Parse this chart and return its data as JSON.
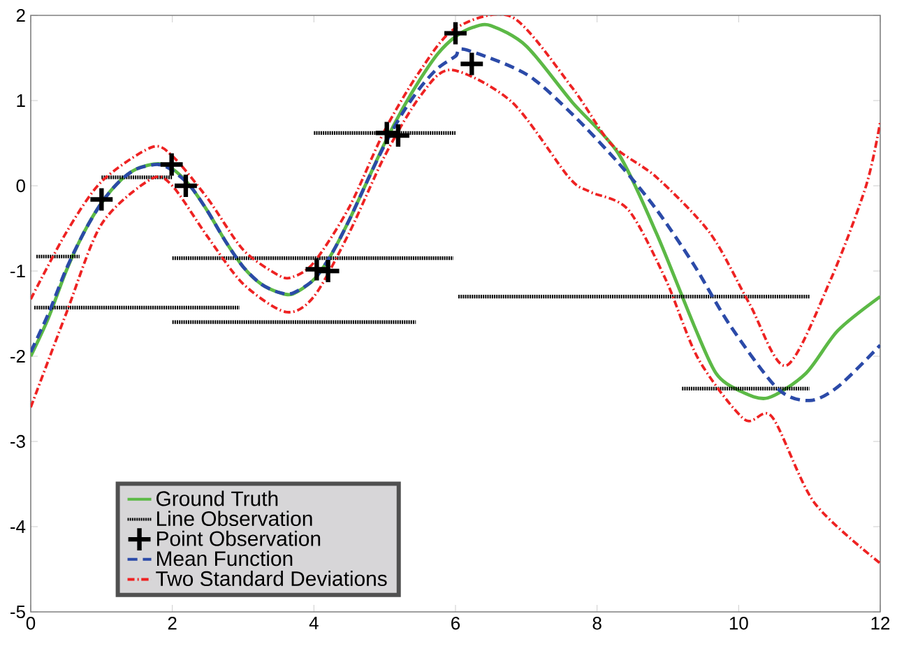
{
  "chart_data": {
    "type": "line",
    "xlim": [
      0,
      12
    ],
    "ylim": [
      -5,
      2
    ],
    "xticks": [
      0,
      2,
      4,
      6,
      8,
      10,
      12
    ],
    "yticks": [
      -5,
      -4,
      -3,
      -2,
      -1,
      0,
      1,
      2
    ],
    "grid": false,
    "legend": "bottom left",
    "series": [
      {
        "name": "Ground Truth",
        "color": "#5cb946",
        "line_style": "solid",
        "x": [
          0,
          0.25,
          0.5,
          0.75,
          1,
          1.25,
          1.5,
          1.8,
          2,
          2.25,
          2.5,
          2.75,
          3,
          3.25,
          3.5,
          3.7,
          4,
          4.25,
          4.5,
          4.75,
          5,
          5.25,
          5.5,
          5.75,
          6,
          6.25,
          6.5,
          7,
          7.65,
          8.3,
          8.84,
          9.37,
          9.68,
          10,
          10.41,
          10.95,
          11.4,
          12
        ],
        "values": [
          -2.0,
          -1.55,
          -1.0,
          -0.55,
          -0.2,
          0.05,
          0.2,
          0.26,
          0.2,
          0.0,
          -0.3,
          -0.65,
          -0.95,
          -1.15,
          -1.25,
          -1.27,
          -1.1,
          -0.8,
          -0.4,
          0.05,
          0.5,
          0.9,
          1.25,
          1.55,
          1.75,
          1.86,
          1.88,
          1.64,
          0.98,
          0.38,
          -0.56,
          -1.64,
          -2.2,
          -2.4,
          -2.49,
          -2.2,
          -1.7,
          -1.3
        ]
      },
      {
        "name": "Line Observation",
        "color": "#000000",
        "line_style": "dotted",
        "x": [
          0.08,
          0.69
        ],
        "values": [
          -0.83,
          -0.83
        ]
      },
      {
        "color": "#000000",
        "line_style": "dotted",
        "x": [
          0.05,
          2.95
        ],
        "values": [
          -1.43,
          -1.43
        ]
      },
      {
        "color": "#000000",
        "line_style": "dotted",
        "x": [
          1.0,
          2.0
        ],
        "values": [
          0.1,
          0.1
        ]
      },
      {
        "color": "#000000",
        "line_style": "dotted",
        "x": [
          2.0,
          5.97
        ],
        "values": [
          -0.85,
          -0.85
        ]
      },
      {
        "color": "#000000",
        "line_style": "dotted",
        "x": [
          2.0,
          5.44
        ],
        "values": [
          -1.6,
          -1.6
        ]
      },
      {
        "color": "#000000",
        "line_style": "dotted",
        "x": [
          4.0,
          6.0
        ],
        "values": [
          0.62,
          0.62
        ]
      },
      {
        "color": "#000000",
        "line_style": "dotted",
        "x": [
          6.04,
          11.0
        ],
        "values": [
          -1.3,
          -1.3
        ]
      },
      {
        "color": "#000000",
        "line_style": "dotted",
        "x": [
          9.2,
          11.0
        ],
        "values": [
          -2.38,
          -2.38
        ]
      },
      {
        "name": "Point Observation",
        "type": "scatter",
        "color": "#000000",
        "marker": "cross",
        "x": [
          1.0,
          1.99,
          2.19,
          4.04,
          4.2,
          5.03,
          5.19,
          6.0,
          6.23
        ],
        "values": [
          -0.16,
          0.25,
          0.0,
          -0.98,
          -1.0,
          0.62,
          0.59,
          1.79,
          1.43
        ]
      },
      {
        "name": "Mean Function",
        "color": "#2b4aa8",
        "line_style": "dashed",
        "x": [
          0,
          0.25,
          0.5,
          0.75,
          1,
          1.25,
          1.5,
          1.8,
          2,
          2.25,
          2.5,
          2.75,
          3,
          3.25,
          3.5,
          3.7,
          4,
          4.25,
          4.5,
          4.75,
          5,
          5.25,
          5.5,
          5.75,
          6,
          6.13,
          7,
          7.65,
          8.3,
          8.84,
          9.37,
          9.88,
          10.55,
          11.0,
          11.4,
          12
        ],
        "values": [
          -1.95,
          -1.5,
          -0.98,
          -0.55,
          -0.2,
          0.05,
          0.2,
          0.25,
          0.18,
          0.0,
          -0.3,
          -0.65,
          -0.95,
          -1.15,
          -1.25,
          -1.26,
          -1.1,
          -0.8,
          -0.4,
          0.05,
          0.48,
          0.85,
          1.15,
          1.38,
          1.52,
          1.6,
          1.31,
          0.84,
          0.27,
          -0.28,
          -0.93,
          -1.64,
          -2.38,
          -2.52,
          -2.36,
          -1.87
        ]
      },
      {
        "name": "Two Standard Deviations",
        "color": "#ee2222",
        "line_style": "dashdot",
        "x": [
          0,
          0.5,
          1,
          1.7,
          2,
          2.5,
          3,
          3.5,
          3.7,
          4,
          4.5,
          5,
          5.5,
          6,
          6.8,
          7.65,
          8.2,
          8.84,
          9.6,
          10.15,
          10.67,
          11.3,
          11.8,
          12
        ],
        "values": [
          -1.33,
          -0.55,
          0.05,
          0.45,
          0.35,
          -0.15,
          -0.75,
          -1.05,
          -1.07,
          -0.9,
          -0.25,
          0.65,
          1.35,
          1.85,
          1.98,
          1.15,
          0.49,
          0.1,
          -0.56,
          -1.38,
          -2.11,
          -1.1,
          0.0,
          0.75
        ]
      },
      {
        "color": "#ee2222",
        "line_style": "dashdot",
        "x": [
          0,
          0.5,
          1,
          1.7,
          2,
          2.5,
          3,
          3.6,
          4,
          4.5,
          5,
          5.5,
          5.94,
          6.8,
          7.6,
          7.9,
          8.44,
          8.97,
          9.43,
          10.08,
          10.47,
          11.07,
          12
        ],
        "values": [
          -2.6,
          -1.5,
          -0.45,
          0.08,
          0.0,
          -0.6,
          -1.15,
          -1.48,
          -1.3,
          -0.55,
          0.35,
          1.05,
          1.36,
          0.98,
          0.1,
          -0.07,
          -0.28,
          -1.1,
          -2.03,
          -2.74,
          -2.71,
          -3.72,
          -4.43
        ]
      }
    ]
  }
}
